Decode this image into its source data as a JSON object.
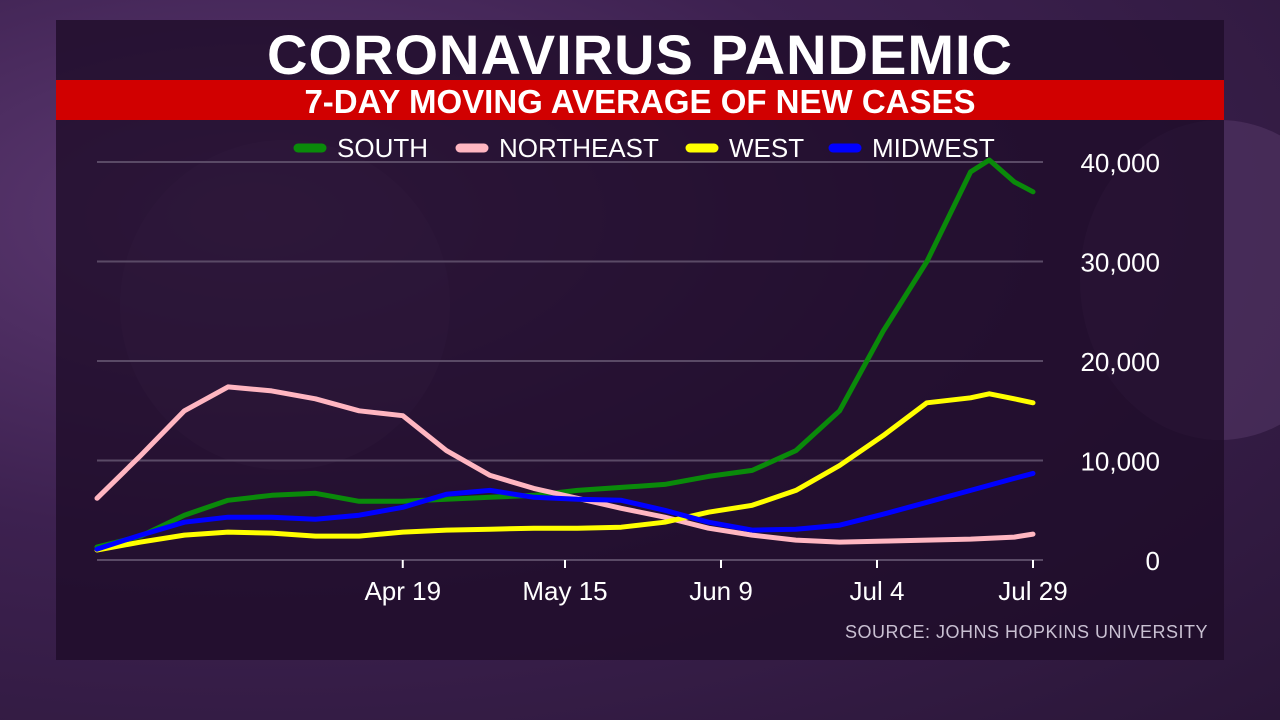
{
  "header": {
    "title": "CORONAVIRUS PANDEMIC",
    "subtitle": "7-DAY MOVING AVERAGE OF NEW CASES"
  },
  "footer": {
    "source": "SOURCE: JOHNS HOPKINS UNIVERSITY"
  },
  "colors": {
    "title_bar": "#d10000",
    "grid": "#5a4a66"
  },
  "chart_data": {
    "type": "line",
    "title": "7-DAY MOVING AVERAGE OF NEW CASES",
    "xlabel": "",
    "ylabel": "",
    "x_range": [
      "Mar 1",
      "Jul 29"
    ],
    "ylim": [
      0,
      40000
    ],
    "yticks": [
      0,
      10000,
      20000,
      30000,
      40000
    ],
    "ytick_labels": [
      "0",
      "10,000",
      "20,000",
      "30,000",
      "40,000"
    ],
    "xticks": [
      "Apr 19",
      "May 15",
      "Jun 9",
      "Jul 4",
      "Jul 29"
    ],
    "grid": true,
    "legend_position": "top",
    "series": [
      {
        "name": "SOUTH",
        "color": "#0a8a0a",
        "points": [
          [
            "Mar 1",
            1300
          ],
          [
            "Mar 8",
            2400
          ],
          [
            "Mar 15",
            4500
          ],
          [
            "Mar 22",
            6000
          ],
          [
            "Mar 29",
            6500
          ],
          [
            "Apr 5",
            6700
          ],
          [
            "Apr 12",
            5900
          ],
          [
            "Apr 19",
            5900
          ],
          [
            "Apr 26",
            6100
          ],
          [
            "May 3",
            6300
          ],
          [
            "May 10",
            6500
          ],
          [
            "May 17",
            7000
          ],
          [
            "May 24",
            7300
          ],
          [
            "May 31",
            7600
          ],
          [
            "Jun 7",
            8400
          ],
          [
            "Jun 14",
            9000
          ],
          [
            "Jun 21",
            11000
          ],
          [
            "Jun 28",
            15000
          ],
          [
            "Jul 5",
            23000
          ],
          [
            "Jul 12",
            30000
          ],
          [
            "Jul 19",
            39000
          ],
          [
            "Jul 22",
            40200
          ],
          [
            "Jul 26",
            38000
          ],
          [
            "Jul 29",
            37000
          ]
        ]
      },
      {
        "name": "NORTHEAST",
        "color": "#ffb6c1",
        "points": [
          [
            "Mar 1",
            6200
          ],
          [
            "Mar 8",
            10500
          ],
          [
            "Mar 15",
            15000
          ],
          [
            "Mar 22",
            17400
          ],
          [
            "Mar 29",
            17000
          ],
          [
            "Apr 5",
            16200
          ],
          [
            "Apr 12",
            15000
          ],
          [
            "Apr 19",
            14500
          ],
          [
            "Apr 26",
            11000
          ],
          [
            "May 3",
            8500
          ],
          [
            "May 10",
            7200
          ],
          [
            "May 17",
            6200
          ],
          [
            "May 24",
            5200
          ],
          [
            "May 31",
            4300
          ],
          [
            "Jun 7",
            3200
          ],
          [
            "Jun 14",
            2500
          ],
          [
            "Jun 21",
            2000
          ],
          [
            "Jun 28",
            1800
          ],
          [
            "Jul 5",
            1900
          ],
          [
            "Jul 12",
            2000
          ],
          [
            "Jul 19",
            2100
          ],
          [
            "Jul 26",
            2300
          ],
          [
            "Jul 29",
            2600
          ]
        ]
      },
      {
        "name": "WEST",
        "color": "#ffff00",
        "points": [
          [
            "Mar 1",
            1000
          ],
          [
            "Mar 8",
            1800
          ],
          [
            "Mar 15",
            2500
          ],
          [
            "Mar 22",
            2800
          ],
          [
            "Mar 29",
            2700
          ],
          [
            "Apr 5",
            2400
          ],
          [
            "Apr 12",
            2400
          ],
          [
            "Apr 19",
            2800
          ],
          [
            "Apr 26",
            3000
          ],
          [
            "May 3",
            3100
          ],
          [
            "May 10",
            3200
          ],
          [
            "May 17",
            3200
          ],
          [
            "May 24",
            3300
          ],
          [
            "May 31",
            3800
          ],
          [
            "Jun 7",
            4800
          ],
          [
            "Jun 14",
            5500
          ],
          [
            "Jun 21",
            7000
          ],
          [
            "Jun 28",
            9500
          ],
          [
            "Jul 5",
            12500
          ],
          [
            "Jul 12",
            15800
          ],
          [
            "Jul 19",
            16300
          ],
          [
            "Jul 22",
            16700
          ],
          [
            "Jul 26",
            16200
          ],
          [
            "Jul 29",
            15800
          ]
        ]
      },
      {
        "name": "MIDWEST",
        "color": "#0000ff",
        "points": [
          [
            "Mar 1",
            1100
          ],
          [
            "Mar 8",
            2500
          ],
          [
            "Mar 15",
            3800
          ],
          [
            "Mar 22",
            4300
          ],
          [
            "Mar 29",
            4300
          ],
          [
            "Apr 5",
            4100
          ],
          [
            "Apr 12",
            4500
          ],
          [
            "Apr 19",
            5300
          ],
          [
            "Apr 26",
            6600
          ],
          [
            "May 3",
            7000
          ],
          [
            "May 10",
            6300
          ],
          [
            "May 17",
            6100
          ],
          [
            "May 24",
            6000
          ],
          [
            "May 31",
            5000
          ],
          [
            "Jun 7",
            3800
          ],
          [
            "Jun 14",
            3000
          ],
          [
            "Jun 21",
            3100
          ],
          [
            "Jun 28",
            3500
          ],
          [
            "Jul 5",
            4600
          ],
          [
            "Jul 12",
            5800
          ],
          [
            "Jul 19",
            7000
          ],
          [
            "Jul 26",
            8200
          ],
          [
            "Jul 29",
            8700
          ]
        ]
      }
    ]
  }
}
